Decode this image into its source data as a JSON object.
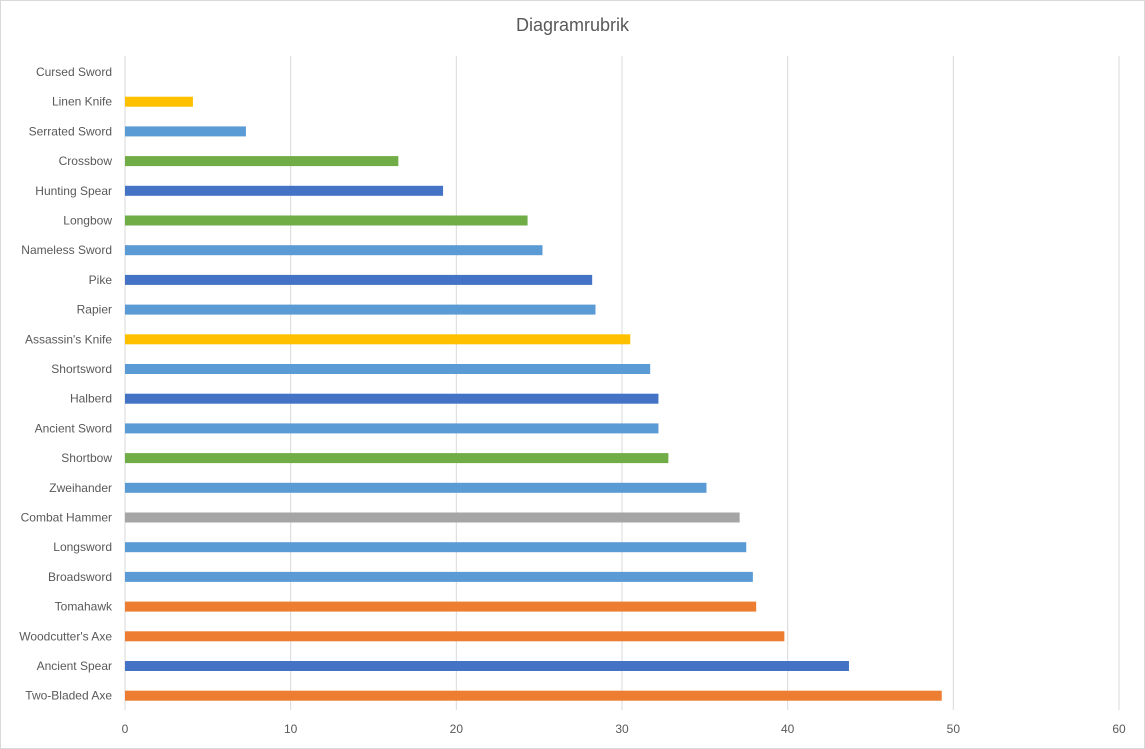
{
  "chart_data": {
    "type": "bar",
    "orientation": "horizontal",
    "title": "Diagramrubrik",
    "xlabel": "",
    "ylabel": "",
    "xlim": [
      0,
      60
    ],
    "xticks": [
      0,
      10,
      20,
      30,
      40,
      50,
      60
    ],
    "grid": true,
    "legend": "none",
    "categories": [
      "Cursed Sword",
      "Linen Knife",
      "Serrated Sword",
      "Crossbow",
      "Hunting Spear",
      "Longbow",
      "Nameless Sword",
      "Pike",
      "Rapier",
      "Assassin's Knife",
      "Shortsword",
      "Halberd",
      "Ancient Sword",
      "Shortbow",
      "Zweihander",
      "Combat Hammer",
      "Longsword",
      "Broadsword",
      "Tomahawk",
      "Woodcutter's Axe",
      "Ancient Spear",
      "Two-Bladed Axe"
    ],
    "values": [
      0,
      4.1,
      7.3,
      16.5,
      19.2,
      24.3,
      25.2,
      28.2,
      28.4,
      30.5,
      31.7,
      32.2,
      32.2,
      32.8,
      35.1,
      37.1,
      37.5,
      37.9,
      38.1,
      39.8,
      43.7,
      49.3
    ],
    "colors": [
      "#5b9bd5",
      "#ffc000",
      "#5b9bd5",
      "#70ad47",
      "#4472c4",
      "#70ad47",
      "#5b9bd5",
      "#4472c4",
      "#5b9bd5",
      "#ffc000",
      "#5b9bd5",
      "#4472c4",
      "#5b9bd5",
      "#70ad47",
      "#5b9bd5",
      "#a5a5a5",
      "#5b9bd5",
      "#5b9bd5",
      "#ed7d31",
      "#ed7d31",
      "#4472c4",
      "#ed7d31"
    ]
  }
}
